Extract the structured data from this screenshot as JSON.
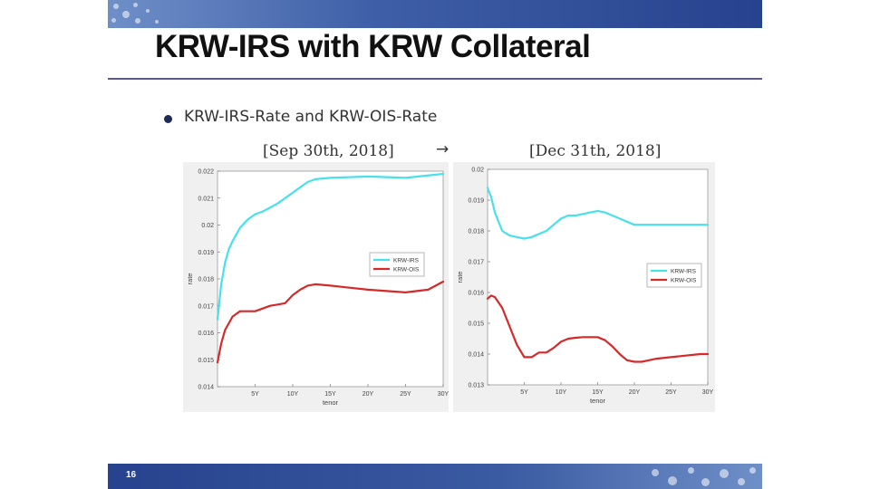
{
  "slide": {
    "title": "KRW-IRS with KRW Collateral",
    "bullet": "KRW-IRS-Rate and KRW-OIS-Rate",
    "date_left": "[Sep 30th, 2018]",
    "arrow": "→",
    "date_right": "[Dec 31th, 2018]",
    "page_number": "16"
  },
  "colors": {
    "irs": "#48e0ec",
    "ois": "#d42a2a"
  },
  "chart_data": [
    {
      "type": "line",
      "xlabel": "tenor",
      "ylabel": "rate",
      "xlim": [
        0,
        30
      ],
      "ylim": [
        0.014,
        0.022
      ],
      "x_ticks": [
        5,
        10,
        15,
        20,
        25,
        30
      ],
      "x_tick_labels": [
        "5Y",
        "10Y",
        "15Y",
        "20Y",
        "25Y",
        "30Y"
      ],
      "y_ticks": [
        0.014,
        0.015,
        0.016,
        0.017,
        0.018,
        0.019,
        0.02,
        0.021,
        0.022
      ],
      "y_tick_labels": [
        "0.014",
        "0.015",
        "0.016",
        "0.017",
        "0.018",
        "0.019",
        "0.02",
        "0.021",
        "0.022"
      ],
      "legend_position": "center-right",
      "series": [
        {
          "name": "KRW-IRS",
          "color": "#48e0ec",
          "x": [
            0,
            0.5,
            1,
            1.5,
            2,
            3,
            4,
            5,
            6,
            7,
            8,
            10,
            12,
            13,
            15,
            20,
            25,
            30
          ],
          "y": [
            0.0165,
            0.0178,
            0.0186,
            0.0191,
            0.0194,
            0.0199,
            0.0202,
            0.0204,
            0.0205,
            0.02065,
            0.0208,
            0.0212,
            0.0216,
            0.0217,
            0.02175,
            0.0218,
            0.02175,
            0.0219
          ]
        },
        {
          "name": "KRW-OIS",
          "color": "#d42a2a",
          "x": [
            0,
            0.5,
            1,
            2,
            3,
            4,
            5,
            6,
            7,
            8,
            9,
            10,
            11,
            12,
            13,
            15,
            20,
            25,
            28,
            30
          ],
          "y": [
            0.0149,
            0.0156,
            0.0161,
            0.0166,
            0.0168,
            0.0168,
            0.0168,
            0.0169,
            0.017,
            0.01705,
            0.0171,
            0.0174,
            0.0176,
            0.01775,
            0.0178,
            0.01775,
            0.0176,
            0.0175,
            0.0176,
            0.0179
          ]
        }
      ]
    },
    {
      "type": "line",
      "xlabel": "tenor",
      "ylabel": "rate",
      "xlim": [
        0,
        30
      ],
      "ylim": [
        0.013,
        0.02
      ],
      "x_ticks": [
        5,
        10,
        15,
        20,
        25,
        30
      ],
      "x_tick_labels": [
        "5Y",
        "10Y",
        "15Y",
        "20Y",
        "25Y",
        "30Y"
      ],
      "y_ticks": [
        0.013,
        0.014,
        0.015,
        0.016,
        0.017,
        0.018,
        0.019,
        0.02
      ],
      "y_tick_labels": [
        "0.013",
        "0.014",
        "0.015",
        "0.016",
        "0.017",
        "0.018",
        "0.019",
        "0.02"
      ],
      "legend_position": "center-right",
      "series": [
        {
          "name": "KRW-IRS",
          "color": "#48e0ec",
          "x": [
            0,
            0.5,
            1,
            2,
            3,
            4,
            5,
            6,
            7,
            8,
            9,
            10,
            11,
            12,
            13,
            14,
            15,
            16,
            17,
            18,
            19,
            20,
            25,
            30
          ],
          "y": [
            0.0194,
            0.0191,
            0.0186,
            0.018,
            0.01785,
            0.0178,
            0.01775,
            0.0178,
            0.0179,
            0.018,
            0.0182,
            0.0184,
            0.0185,
            0.0185,
            0.01855,
            0.0186,
            0.01865,
            0.0186,
            0.0185,
            0.0184,
            0.0183,
            0.0182,
            0.0182,
            0.0182
          ]
        },
        {
          "name": "KRW-OIS",
          "color": "#d42a2a",
          "x": [
            0,
            0.5,
            1,
            2,
            3,
            4,
            5,
            6,
            7,
            8,
            9,
            10,
            11,
            12,
            13,
            14,
            15,
            16,
            17,
            18,
            19,
            20,
            21,
            22,
            23,
            25,
            27,
            29,
            30
          ],
          "y": [
            0.0158,
            0.0159,
            0.01585,
            0.0155,
            0.0149,
            0.0143,
            0.0139,
            0.0139,
            0.01405,
            0.01405,
            0.0142,
            0.0144,
            0.0145,
            0.01453,
            0.01455,
            0.01455,
            0.01455,
            0.01445,
            0.01425,
            0.014,
            0.0138,
            0.01375,
            0.01375,
            0.0138,
            0.01385,
            0.0139,
            0.01395,
            0.014,
            0.014
          ]
        }
      ]
    }
  ]
}
